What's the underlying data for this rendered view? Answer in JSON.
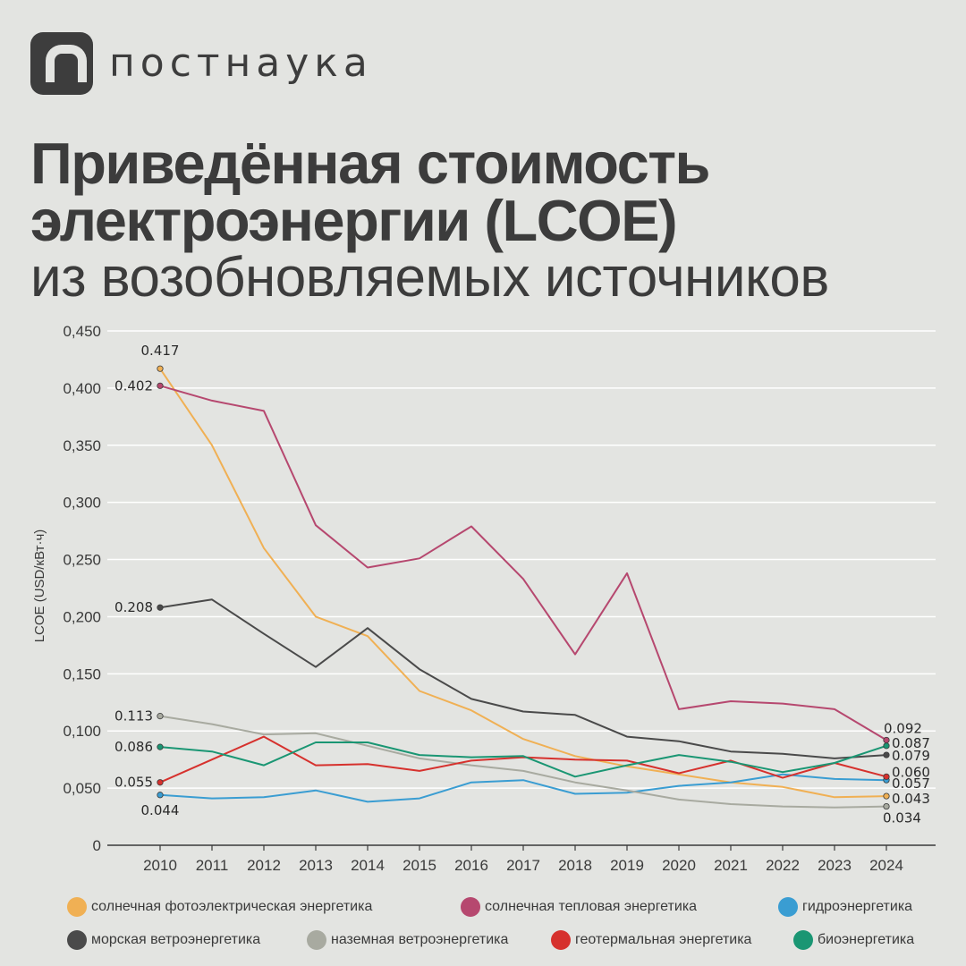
{
  "brand": {
    "name": "постнаука"
  },
  "title": {
    "line1": "Приведённая стоимость",
    "line2": "электроэнергии (LCOE)",
    "line3": "из возобновляемых источников"
  },
  "chart_data": {
    "type": "line",
    "ylabel": "LCOE (USD/кВт·ч)",
    "xlabel": "",
    "ylim": [
      0,
      0.45
    ],
    "yticks": [
      0,
      0.05,
      0.1,
      0.15,
      0.2,
      0.25,
      0.3,
      0.35,
      0.4,
      0.45
    ],
    "ytick_labels": [
      "0",
      "0,050",
      "0,100",
      "0,150",
      "0,200",
      "0,250",
      "0,300",
      "0,350",
      "0,400",
      "0,450"
    ],
    "grid": true,
    "legend_position": "bottom",
    "x": [
      "2010",
      "2011",
      "2012",
      "2013",
      "2014",
      "2015",
      "2016",
      "2017",
      "2018",
      "2019",
      "2020",
      "2021",
      "2022",
      "2023",
      "2024"
    ],
    "series": [
      {
        "name": "солнечная фотоэлектрическая энергетика",
        "color": "#f0b054",
        "start_label": "0.417",
        "end_label": "0.043",
        "values": [
          0.417,
          0.35,
          0.26,
          0.2,
          0.183,
          0.135,
          0.118,
          0.093,
          0.078,
          0.069,
          0.062,
          0.055,
          0.051,
          0.042,
          0.043
        ]
      },
      {
        "name": "солнечная тепловая энергетика",
        "color": "#b6486f",
        "start_label": "0.402",
        "end_label": "0.092",
        "values": [
          0.402,
          0.389,
          0.38,
          0.28,
          0.243,
          0.251,
          0.279,
          0.233,
          0.167,
          0.238,
          0.119,
          0.126,
          0.124,
          0.119,
          0.092
        ]
      },
      {
        "name": "гидроэнергетика",
        "color": "#3a9dd2",
        "start_label": "0.044",
        "end_label": "0.057",
        "values": [
          0.044,
          0.041,
          0.042,
          0.048,
          0.038,
          0.041,
          0.055,
          0.057,
          0.045,
          0.046,
          0.052,
          0.055,
          0.062,
          0.058,
          0.057
        ]
      },
      {
        "name": "морская ветроэнергетика",
        "color": "#4a4a4a",
        "start_label": "0.208",
        "end_label": "0.079",
        "values": [
          0.208,
          0.215,
          0.185,
          0.156,
          0.19,
          0.154,
          0.128,
          0.117,
          0.114,
          0.095,
          0.091,
          0.082,
          0.08,
          0.076,
          0.079
        ]
      },
      {
        "name": "наземная ветроэнергетика",
        "color": "#a8aaa0",
        "start_label": "0.113",
        "end_label": "0.034",
        "values": [
          0.113,
          0.106,
          0.097,
          0.098,
          0.087,
          0.076,
          0.07,
          0.065,
          0.055,
          0.048,
          0.04,
          0.036,
          0.034,
          0.033,
          0.034
        ]
      },
      {
        "name": "геотермальная энергетика",
        "color": "#d6312d",
        "start_label": "0.055",
        "end_label": "0.060",
        "values": [
          0.055,
          0.075,
          0.095,
          0.07,
          0.071,
          0.065,
          0.074,
          0.077,
          0.075,
          0.074,
          0.063,
          0.074,
          0.059,
          0.072,
          0.06
        ]
      },
      {
        "name": "биоэнергетика",
        "color": "#1a9673",
        "start_label": "0.086",
        "end_label": "0.087",
        "values": [
          0.086,
          0.082,
          0.07,
          0.09,
          0.09,
          0.079,
          0.077,
          0.078,
          0.06,
          0.07,
          0.079,
          0.073,
          0.064,
          0.072,
          0.087
        ]
      }
    ]
  }
}
